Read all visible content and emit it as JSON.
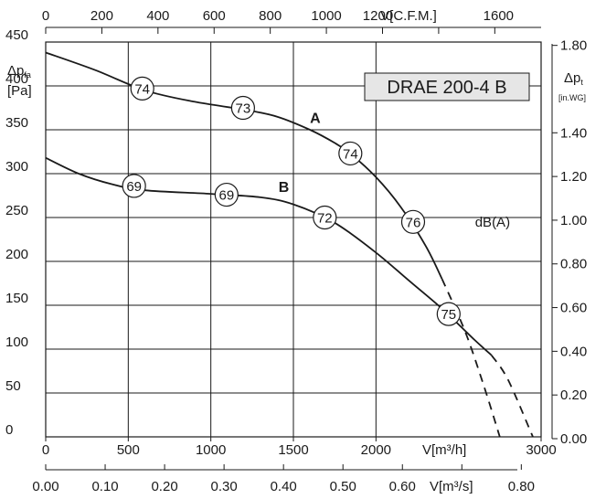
{
  "chart_data": {
    "type": "line",
    "title": "DRAE 200-4 B",
    "x": {
      "label": "V[m³/h]",
      "range": [
        0,
        3000
      ],
      "ticks": [
        "0",
        "500",
        "1000",
        "1500",
        "2000",
        "3000"
      ]
    },
    "x_top": {
      "label": "V[C.F.M.]",
      "range": [
        0,
        1765
      ],
      "ticks": [
        "0",
        "200",
        "400",
        "600",
        "800",
        "1000",
        "1200",
        "1600"
      ]
    },
    "x_bottom2": {
      "label": "V[m³/s]",
      "range": [
        0,
        0.8333
      ],
      "ticks": [
        "0.00",
        "0.10",
        "0.20",
        "0.30",
        "0.40",
        "0.50",
        "0.60",
        "0.80"
      ]
    },
    "y": {
      "label_main": "Δp",
      "label_sub": "fa",
      "label_unit": "[Pa]",
      "range": [
        0,
        450
      ],
      "ticks": [
        "0",
        "50",
        "100",
        "150",
        "200",
        "250",
        "300",
        "350",
        "400",
        "450"
      ]
    },
    "y_right": {
      "label_main": "Δp",
      "label_sub": "t",
      "label_unit": "[in.WG]",
      "range": [
        0,
        1.807
      ],
      "ticks": [
        "0.00",
        "0.20",
        "0.40",
        "0.60",
        "0.80",
        "1.00",
        "1.20",
        "1.40",
        "1.80"
      ]
    },
    "grid": true,
    "series": [
      {
        "name": "A",
        "style": "solid",
        "points": [
          [
            0,
            438
          ],
          [
            300,
            418
          ],
          [
            600,
            395
          ],
          [
            900,
            382
          ],
          [
            1200,
            373
          ],
          [
            1400,
            365
          ],
          [
            1600,
            350
          ],
          [
            1750,
            335
          ],
          [
            1850,
            322
          ],
          [
            2000,
            296
          ],
          [
            2150,
            262
          ],
          [
            2300,
            218
          ],
          [
            2400,
            180
          ]
        ]
      },
      {
        "name": "A-extension",
        "style": "dashed",
        "points": [
          [
            2400,
            180
          ],
          [
            2540,
            120
          ],
          [
            2650,
            60
          ],
          [
            2750,
            0
          ]
        ]
      },
      {
        "name": "B",
        "style": "solid",
        "points": [
          [
            0,
            318
          ],
          [
            200,
            300
          ],
          [
            400,
            288
          ],
          [
            600,
            281
          ],
          [
            1000,
            277
          ],
          [
            1300,
            273
          ],
          [
            1500,
            265
          ],
          [
            1750,
            244
          ],
          [
            2000,
            210
          ],
          [
            2200,
            178
          ],
          [
            2400,
            146
          ],
          [
            2600,
            110
          ],
          [
            2700,
            93
          ]
        ]
      },
      {
        "name": "B-extension",
        "style": "dashed",
        "points": [
          [
            2700,
            93
          ],
          [
            2800,
            65
          ],
          [
            2950,
            0
          ]
        ]
      }
    ],
    "annotations": [
      {
        "text": "74",
        "x": 585,
        "y": 397
      },
      {
        "text": "73",
        "x": 1195,
        "y": 375
      },
      {
        "text": "74",
        "x": 1845,
        "y": 323
      },
      {
        "text": "69",
        "x": 535,
        "y": 286
      },
      {
        "text": "69",
        "x": 1095,
        "y": 276
      },
      {
        "text": "72",
        "x": 1690,
        "y": 250
      },
      {
        "text": "76",
        "x": 2225,
        "y": 245
      },
      {
        "text": "75",
        "x": 2440,
        "y": 140
      }
    ],
    "curve_labels": [
      {
        "text": "A",
        "x": 1600,
        "y": 358
      },
      {
        "text": "B",
        "x": 1410,
        "y": 279
      }
    ],
    "extra_label": {
      "text": "dB(A)",
      "x": 2600,
      "y": 245
    }
  }
}
